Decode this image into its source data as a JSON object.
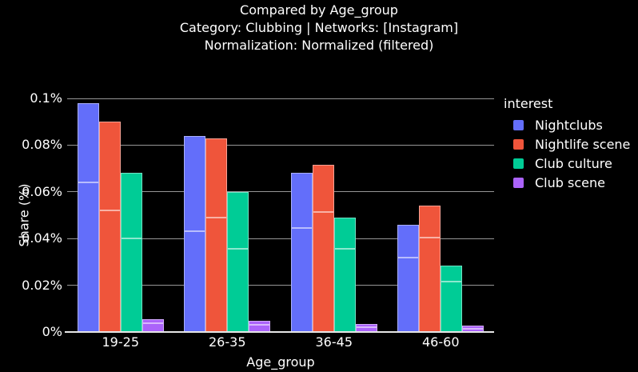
{
  "colors": {
    "background": "#000000",
    "text": "#ffffff",
    "gridline": "#969696",
    "zero_line": "#e6e6e6",
    "bar_edge": "rgba(255,255,255,0.45)",
    "bar_split_line": "rgba(255,255,255,0.55)"
  },
  "chart_data": {
    "type": "bar",
    "barmode": "grouped",
    "title": "Compared by Age_group",
    "subtitle": [
      "Category: Clubbing | Networks: [Instagram]",
      "Normalization: Normalized (filtered)"
    ],
    "xlabel": "Age_group",
    "ylabel": "Share (%)",
    "legend_title": "interest",
    "legend_position": "right",
    "grid": true,
    "categories": [
      "19-25",
      "26-35",
      "36-45",
      "46-60"
    ],
    "ylim": [
      0,
      0.1
    ],
    "yticks": [
      {
        "value": 0,
        "label": "0%"
      },
      {
        "value": 0.02,
        "label": "0.02%"
      },
      {
        "value": 0.04,
        "label": "0.04%"
      },
      {
        "value": 0.06,
        "label": "0.06%"
      },
      {
        "value": 0.08,
        "label": "0.08%"
      },
      {
        "value": 0.1,
        "label": "0.1%"
      }
    ],
    "value_unit": "percent",
    "series": [
      {
        "name": "Nightclubs",
        "color": "#636EFA",
        "values": [
          0.098,
          0.084,
          0.068,
          0.046
        ],
        "segment_split_values": [
          0.064,
          0.043,
          0.0445,
          0.032
        ]
      },
      {
        "name": "Nightlife scene",
        "color": "#EF553B",
        "values": [
          0.09,
          0.083,
          0.0715,
          0.054
        ],
        "segment_split_values": [
          0.052,
          0.049,
          0.0515,
          0.0404
        ]
      },
      {
        "name": "Club culture",
        "color": "#00CC96",
        "values": [
          0.068,
          0.06,
          0.049,
          0.0285
        ],
        "segment_split_values": [
          0.04,
          0.0355,
          0.0355,
          0.0215
        ]
      },
      {
        "name": "Club scene",
        "color": "#AB63FA",
        "values": [
          0.0055,
          0.0048,
          0.0034,
          0.0029
        ],
        "segment_split_values": [
          0.0037,
          0.0031,
          0.002,
          0.0014
        ]
      }
    ]
  }
}
